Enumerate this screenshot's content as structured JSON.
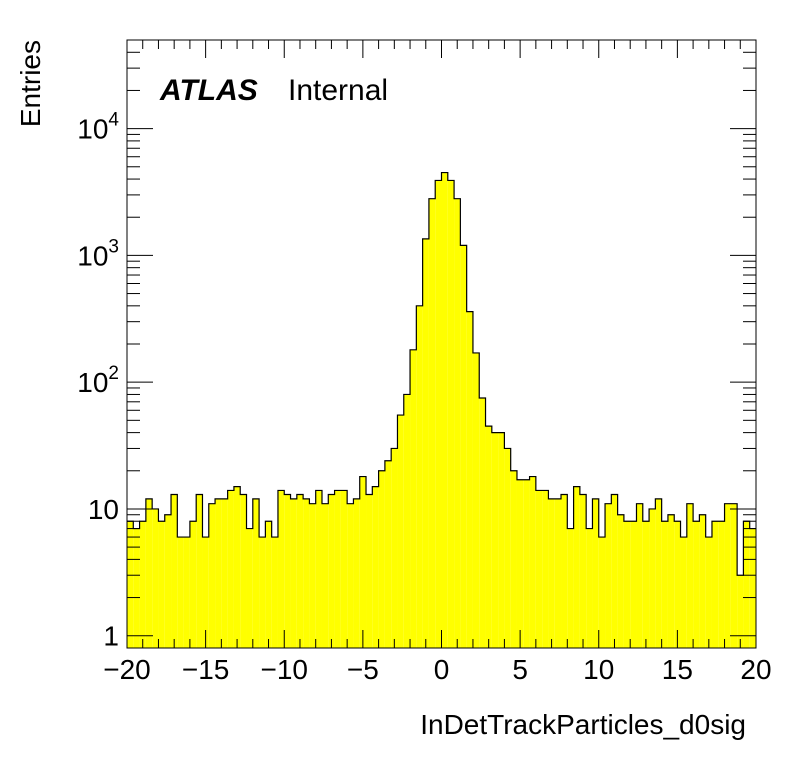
{
  "chart_data": {
    "type": "bar",
    "histogram": true,
    "title": "",
    "xlabel": "InDetTrackParticles_d0sig",
    "ylabel": "Entries",
    "xlim": [
      -20,
      20
    ],
    "ylim": [
      0.8,
      50000
    ],
    "yscale": "log",
    "xticks": [
      -20,
      -15,
      -10,
      -5,
      0,
      5,
      10,
      15,
      20
    ],
    "xtick_labels": [
      "−20",
      "−15",
      "−10",
      "−5",
      "0",
      "5",
      "10",
      "15",
      "20"
    ],
    "yticks": [
      {
        "value": 1,
        "base": "1",
        "exp": ""
      },
      {
        "value": 10,
        "base": "10",
        "exp": ""
      },
      {
        "value": 100,
        "base": "10",
        "exp": "2"
      },
      {
        "value": 1000,
        "base": "10",
        "exp": "3"
      },
      {
        "value": 10000,
        "base": "10",
        "exp": "4"
      }
    ],
    "grid": false,
    "fill_color": "#ffff00",
    "line_color": "#000000",
    "bin_width": 0.4,
    "bin_low_edges": [
      -20.0,
      -19.6,
      -19.2,
      -18.8,
      -18.4,
      -18.0,
      -17.6,
      -17.2,
      -16.8,
      -16.4,
      -16.0,
      -15.6,
      -15.2,
      -14.8,
      -14.4,
      -14.0,
      -13.6,
      -13.2,
      -12.8,
      -12.4,
      -12.0,
      -11.6,
      -11.2,
      -10.8,
      -10.4,
      -10.0,
      -9.6,
      -9.2,
      -8.8,
      -8.4,
      -8.0,
      -7.6,
      -7.2,
      -6.8,
      -6.4,
      -6.0,
      -5.6,
      -5.2,
      -4.8,
      -4.4,
      -4.0,
      -3.6,
      -3.2,
      -2.8,
      -2.4,
      -2.0,
      -1.6,
      -1.2,
      -0.8,
      -0.4,
      0.0,
      0.4,
      0.8,
      1.2,
      1.6,
      2.0,
      2.4,
      2.8,
      3.2,
      3.6,
      4.0,
      4.4,
      4.8,
      5.2,
      5.6,
      6.0,
      6.4,
      6.8,
      7.2,
      7.6,
      8.0,
      8.4,
      8.8,
      9.2,
      9.6,
      10.0,
      10.4,
      10.8,
      11.2,
      11.6,
      12.0,
      12.4,
      12.8,
      13.2,
      13.6,
      14.0,
      14.4,
      14.8,
      15.2,
      15.6,
      16.0,
      16.4,
      16.8,
      17.2,
      17.6,
      18.0,
      18.4,
      18.8,
      19.2,
      19.6
    ],
    "values": [
      8,
      7,
      8,
      12,
      10,
      8,
      9,
      13,
      6,
      6,
      8,
      13,
      6,
      11,
      12,
      12,
      14,
      15,
      13,
      7,
      12,
      6,
      8,
      6,
      14,
      13,
      12,
      13,
      12,
      11,
      14,
      11,
      13,
      14,
      14,
      11,
      12,
      18,
      13,
      15,
      20,
      24,
      30,
      55,
      80,
      180,
      400,
      1350,
      2800,
      3900,
      4500,
      3900,
      2800,
      1200,
      360,
      170,
      75,
      45,
      40,
      40,
      30,
      20,
      17,
      17,
      18,
      14,
      14,
      12,
      12,
      13,
      7,
      15,
      13,
      7,
      12,
      6,
      11,
      13,
      9,
      8,
      8,
      11,
      8,
      10,
      12,
      8,
      9,
      8,
      6,
      11,
      8,
      9,
      6,
      8,
      8,
      11,
      11,
      3,
      8,
      7
    ]
  },
  "labels": {
    "atlas": "ATLAS",
    "internal": "Internal"
  }
}
